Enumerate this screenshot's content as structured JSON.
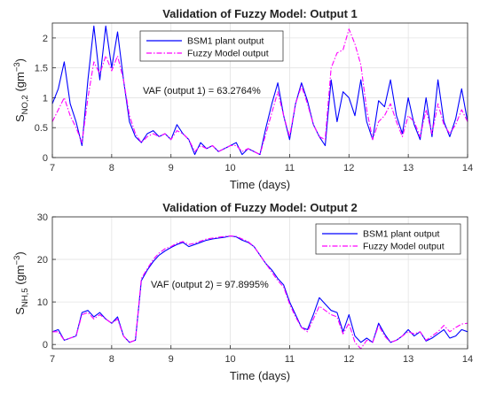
{
  "chart_data": [
    {
      "type": "line",
      "title": "Validation of Fuzzy Model: Output 1",
      "xlabel": "Time (days)",
      "ylabel": "S_NO,2 (gm^-3)",
      "ylabel_main": "S",
      "ylabel_sub": "NO,2",
      "ylabel_unit_open": " (gm",
      "ylabel_unit_sup": "−3",
      "ylabel_unit_close": ")",
      "xlim": [
        7,
        14
      ],
      "ylim": [
        0,
        2.25
      ],
      "xticks": [
        7,
        8,
        9,
        10,
        11,
        12,
        13,
        14
      ],
      "yticks": [
        0,
        0.5,
        1,
        1.5,
        2
      ],
      "ytick_labels": [
        "0",
        "0.5",
        "1",
        "1.5",
        "2"
      ],
      "grid": true,
      "legend_position": "top-center",
      "annotation": "VAF (output 1) = 63.2764%",
      "series": [
        {
          "name": "BSM1 plant output",
          "color": "#0000ff",
          "style": "solid",
          "x": [
            7.0,
            7.1,
            7.2,
            7.3,
            7.4,
            7.5,
            7.6,
            7.7,
            7.8,
            7.9,
            8.0,
            8.1,
            8.2,
            8.3,
            8.4,
            8.5,
            8.6,
            8.7,
            8.8,
            8.9,
            9.0,
            9.1,
            9.2,
            9.3,
            9.4,
            9.5,
            9.6,
            9.7,
            9.8,
            9.9,
            10.0,
            10.1,
            10.2,
            10.3,
            10.4,
            10.5,
            10.6,
            10.7,
            10.8,
            10.9,
            11.0,
            11.1,
            11.2,
            11.3,
            11.4,
            11.5,
            11.6,
            11.7,
            11.8,
            11.9,
            12.0,
            12.1,
            12.2,
            12.3,
            12.4,
            12.5,
            12.6,
            12.7,
            12.8,
            12.9,
            13.0,
            13.1,
            13.2,
            13.3,
            13.4,
            13.5,
            13.6,
            13.7,
            13.8,
            13.9,
            14.0
          ],
          "values": [
            0.9,
            1.15,
            1.6,
            0.9,
            0.6,
            0.2,
            1.3,
            2.2,
            1.3,
            2.2,
            1.5,
            2.1,
            1.3,
            0.6,
            0.35,
            0.25,
            0.4,
            0.45,
            0.35,
            0.4,
            0.3,
            0.55,
            0.4,
            0.3,
            0.05,
            0.25,
            0.15,
            0.2,
            0.1,
            0.15,
            0.2,
            0.25,
            0.05,
            0.15,
            0.1,
            0.05,
            0.5,
            0.9,
            1.25,
            0.7,
            0.3,
            0.9,
            1.25,
            0.95,
            0.55,
            0.35,
            0.2,
            1.3,
            0.6,
            1.1,
            1.0,
            0.7,
            1.3,
            0.6,
            0.3,
            0.95,
            0.85,
            1.3,
            0.7,
            0.4,
            1.0,
            0.55,
            0.3,
            1.0,
            0.35,
            1.3,
            0.6,
            0.35,
            0.65,
            1.15,
            0.6
          ]
        },
        {
          "name": "Fuzzy Model output",
          "color": "#ff00ff",
          "style": "dashdot",
          "x": [
            7.0,
            7.1,
            7.2,
            7.3,
            7.4,
            7.5,
            7.6,
            7.7,
            7.8,
            7.9,
            8.0,
            8.1,
            8.2,
            8.3,
            8.4,
            8.5,
            8.6,
            8.7,
            8.8,
            8.9,
            9.0,
            9.1,
            9.2,
            9.3,
            9.4,
            9.5,
            9.6,
            9.7,
            9.8,
            9.9,
            10.0,
            10.1,
            10.2,
            10.3,
            10.4,
            10.5,
            10.6,
            10.7,
            10.8,
            10.9,
            11.0,
            11.1,
            11.2,
            11.3,
            11.4,
            11.5,
            11.6,
            11.7,
            11.8,
            11.9,
            12.0,
            12.1,
            12.2,
            12.3,
            12.4,
            12.5,
            12.6,
            12.7,
            12.8,
            12.9,
            13.0,
            13.1,
            13.2,
            13.3,
            13.4,
            13.5,
            13.6,
            13.7,
            13.8,
            13.9,
            14.0
          ],
          "values": [
            0.6,
            0.8,
            1.0,
            0.7,
            0.5,
            0.25,
            1.0,
            1.6,
            1.4,
            1.7,
            1.45,
            1.7,
            1.3,
            0.7,
            0.4,
            0.25,
            0.35,
            0.4,
            0.35,
            0.4,
            0.3,
            0.45,
            0.4,
            0.3,
            0.1,
            0.2,
            0.15,
            0.2,
            0.1,
            0.15,
            0.2,
            0.2,
            0.1,
            0.15,
            0.1,
            0.05,
            0.4,
            0.75,
            1.1,
            0.7,
            0.35,
            0.9,
            1.2,
            0.9,
            0.55,
            0.35,
            0.3,
            1.5,
            1.75,
            1.8,
            2.15,
            1.9,
            1.55,
            0.8,
            0.3,
            0.6,
            0.7,
            0.9,
            0.6,
            0.35,
            0.7,
            0.6,
            0.35,
            0.8,
            0.4,
            0.9,
            0.55,
            0.4,
            0.55,
            0.8,
            0.6
          ]
        }
      ]
    },
    {
      "type": "line",
      "title": "Validation of Fuzzy Model: Output 2",
      "xlabel": "Time (days)",
      "ylabel": "S_NH,5 (gm^-3)",
      "ylabel_main": "S",
      "ylabel_sub": "NH,5",
      "ylabel_unit_open": " (gm",
      "ylabel_unit_sup": "−3",
      "ylabel_unit_close": ")",
      "xlim": [
        7,
        14
      ],
      "ylim": [
        -1,
        30
      ],
      "xticks": [
        7,
        8,
        9,
        10,
        11,
        12,
        13,
        14
      ],
      "yticks": [
        0,
        10,
        20,
        30
      ],
      "ytick_labels": [
        "0",
        "10",
        "20",
        "30"
      ],
      "grid": true,
      "legend_position": "top-right",
      "annotation": "VAF (output 2) = 97.8995%",
      "series": [
        {
          "name": "BSM1 plant output",
          "color": "#0000ff",
          "style": "solid",
          "x": [
            7.0,
            7.1,
            7.2,
            7.3,
            7.4,
            7.5,
            7.6,
            7.7,
            7.8,
            7.9,
            8.0,
            8.1,
            8.2,
            8.3,
            8.4,
            8.5,
            8.6,
            8.7,
            8.8,
            8.9,
            9.0,
            9.1,
            9.2,
            9.3,
            9.4,
            9.5,
            9.6,
            9.7,
            9.8,
            9.9,
            10.0,
            10.1,
            10.2,
            10.3,
            10.4,
            10.5,
            10.6,
            10.7,
            10.8,
            10.9,
            11.0,
            11.1,
            11.2,
            11.3,
            11.4,
            11.5,
            11.6,
            11.7,
            11.8,
            11.9,
            12.0,
            12.1,
            12.2,
            12.3,
            12.4,
            12.5,
            12.6,
            12.7,
            12.8,
            12.9,
            13.0,
            13.1,
            13.2,
            13.3,
            13.4,
            13.5,
            13.6,
            13.7,
            13.8,
            13.9,
            14.0
          ],
          "values": [
            3.0,
            3.5,
            1.0,
            1.5,
            2.0,
            7.5,
            8.0,
            6.5,
            7.5,
            6.0,
            5.0,
            6.5,
            2.0,
            0.5,
            1.0,
            15.0,
            17.5,
            19.5,
            21.0,
            22.0,
            22.8,
            23.5,
            24.0,
            23.0,
            23.5,
            24.0,
            24.5,
            24.8,
            25.0,
            25.2,
            25.5,
            25.3,
            24.5,
            24.0,
            23.0,
            21.0,
            19.0,
            17.5,
            15.5,
            14.0,
            10.0,
            7.0,
            4.0,
            3.5,
            7.0,
            11.0,
            9.5,
            8.0,
            7.5,
            3.0,
            7.0,
            2.0,
            0.5,
            1.5,
            0.5,
            5.0,
            2.5,
            0.5,
            1.0,
            2.0,
            3.5,
            2.0,
            3.0,
            0.8,
            1.5,
            2.5,
            3.5,
            1.5,
            2.0,
            3.5,
            3.0
          ]
        },
        {
          "name": "Fuzzy Model output",
          "color": "#ff00ff",
          "style": "dashdot",
          "x": [
            7.0,
            7.1,
            7.2,
            7.3,
            7.4,
            7.5,
            7.6,
            7.7,
            7.8,
            7.9,
            8.0,
            8.1,
            8.2,
            8.3,
            8.4,
            8.5,
            8.6,
            8.7,
            8.8,
            8.9,
            9.0,
            9.1,
            9.2,
            9.3,
            9.4,
            9.5,
            9.6,
            9.7,
            9.8,
            9.9,
            10.0,
            10.1,
            10.2,
            10.3,
            10.4,
            10.5,
            10.6,
            10.7,
            10.8,
            10.9,
            11.0,
            11.1,
            11.2,
            11.3,
            11.4,
            11.5,
            11.6,
            11.7,
            11.8,
            11.9,
            12.0,
            12.1,
            12.2,
            12.3,
            12.4,
            12.5,
            12.6,
            12.7,
            12.8,
            12.9,
            13.0,
            13.1,
            13.2,
            13.3,
            13.4,
            13.5,
            13.6,
            13.7,
            13.8,
            13.9,
            14.0
          ],
          "values": [
            3.0,
            3.0,
            1.0,
            1.5,
            2.0,
            7.0,
            7.5,
            6.0,
            7.0,
            6.0,
            5.0,
            6.0,
            2.0,
            0.5,
            1.0,
            15.5,
            17.8,
            20.0,
            21.5,
            22.5,
            23.0,
            23.8,
            24.2,
            23.5,
            23.8,
            24.3,
            24.8,
            25.0,
            25.2,
            25.4,
            25.5,
            25.4,
            24.8,
            24.2,
            23.0,
            21.0,
            19.0,
            17.0,
            15.0,
            13.5,
            9.5,
            6.5,
            4.0,
            3.0,
            6.0,
            9.0,
            8.0,
            7.0,
            6.5,
            2.5,
            5.0,
            0.5,
            -1.0,
            1.0,
            0.5,
            4.5,
            2.0,
            0.5,
            1.0,
            2.0,
            3.0,
            2.5,
            3.0,
            1.0,
            2.0,
            3.0,
            4.5,
            3.0,
            4.0,
            4.8,
            5.0
          ]
        }
      ]
    }
  ]
}
